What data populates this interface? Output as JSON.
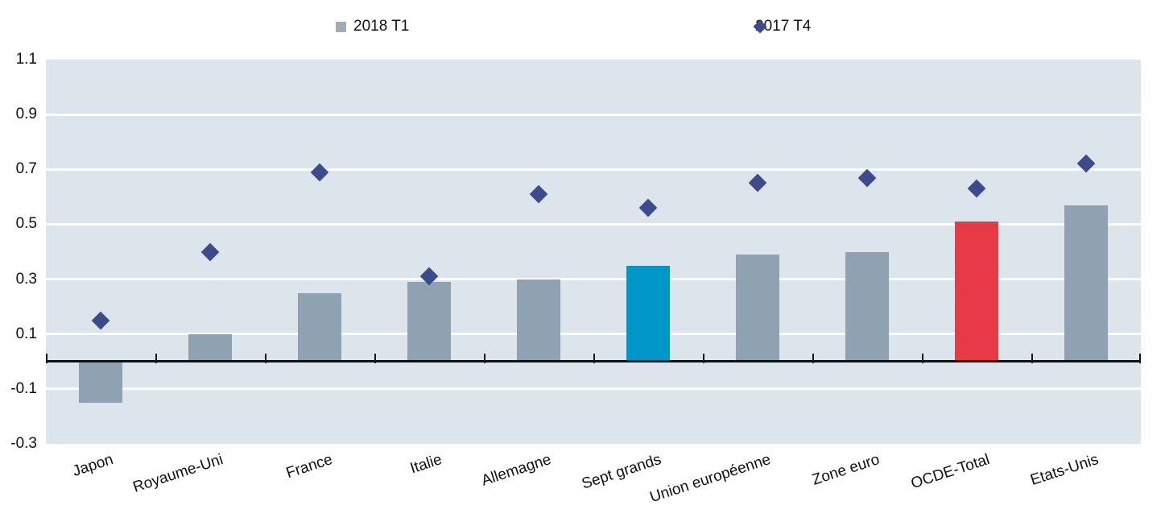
{
  "chart_data": {
    "type": "bar",
    "categories": [
      "Japon",
      "Royaume-Uni",
      "France",
      "Italie",
      "Allemagne",
      "Sept grands",
      "Union européenne",
      "Zone euro",
      "OCDE-Total",
      "Etats-Unis"
    ],
    "series": [
      {
        "name": "2018 T1",
        "type": "bar",
        "values": [
          -0.15,
          0.1,
          0.25,
          0.29,
          0.3,
          0.35,
          0.39,
          0.4,
          0.51,
          0.57
        ],
        "bar_colors": [
          "#8fa2b1",
          "#8fa2b1",
          "#8fa2b1",
          "#8fa2b1",
          "#8fa2b1",
          "#0096c8",
          "#8fa2b1",
          "#8fa2b1",
          "#e73946",
          "#8fa2b1"
        ]
      },
      {
        "name": "2017 T4",
        "type": "scatter",
        "marker": "diamond",
        "color": "#3b4b8e",
        "values": [
          0.15,
          0.4,
          0.69,
          0.31,
          0.61,
          0.56,
          0.65,
          0.67,
          0.63,
          0.72
        ]
      }
    ],
    "title": "",
    "xlabel": "",
    "ylabel": "",
    "ylim": [
      -0.3,
      1.1
    ],
    "yticks": [
      1.1,
      0.9,
      0.7,
      0.5,
      0.3,
      0.1,
      -0.1,
      -0.3
    ],
    "grid": true,
    "legend_position": "top",
    "colors": {
      "plot_background": "#dce5ec",
      "gridline": "#ffffff",
      "bar_default": "#8fa2b1",
      "bar_highlight_blue": "#0096c8",
      "bar_highlight_red": "#e73946",
      "diamond": "#3b4b8e",
      "legend_square": "#9fadb9",
      "axis_line": "#111111"
    }
  }
}
